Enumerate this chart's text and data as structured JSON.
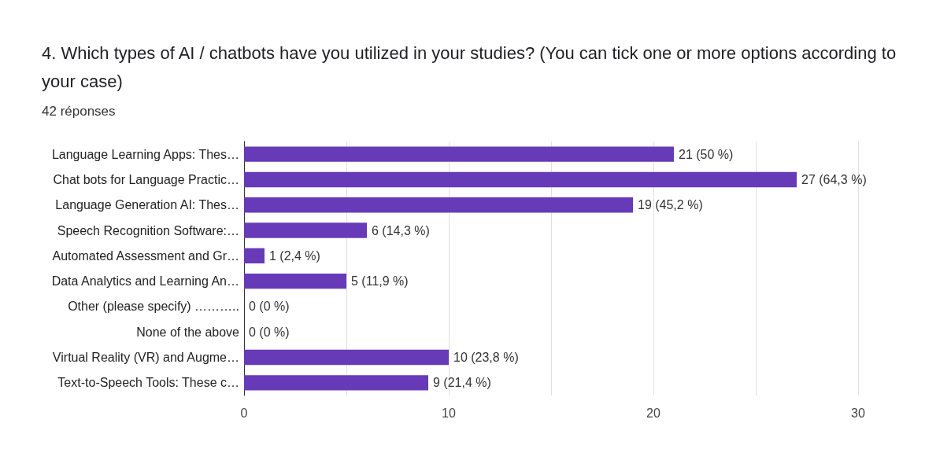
{
  "chart_data": {
    "type": "bar",
    "orientation": "horizontal",
    "title": "4. Which types of AI / chatbots have you utilized in your studies? (You can tick one or more options according to your case)",
    "subtitle": "42 réponses",
    "categories": [
      "Language Learning Apps: Thes…",
      "Chat bots for Language Practic…",
      "Language Generation AI: Thes…",
      "Speech Recognition Software:…",
      "Automated Assessment and Gr…",
      "Data Analytics and Learning An…",
      "Other (please specify) ………..",
      "None of the above",
      "Virtual Reality (VR) and Augme…",
      "Text-to-Speech Tools: These c…"
    ],
    "values": [
      21,
      27,
      19,
      6,
      1,
      5,
      0,
      0,
      10,
      9
    ],
    "value_labels": [
      "21 (50 %)",
      "27 (64,3 %)",
      "19 (45,2 %)",
      "6 (14,3 %)",
      "1 (2,4 %)",
      "5 (11,9 %)",
      "0 (0 %)",
      "0 (0 %)",
      "10 (23,8 %)",
      "9 (21,4 %)"
    ],
    "color": "#673ab7",
    "xlim": [
      0,
      30
    ],
    "xticks": [
      0,
      {
        "value": 5,
        "label": null
      },
      10,
      {
        "value": 15,
        "label": null
      },
      20,
      {
        "value": 25,
        "label": null
      },
      30
    ],
    "grid": "x"
  }
}
